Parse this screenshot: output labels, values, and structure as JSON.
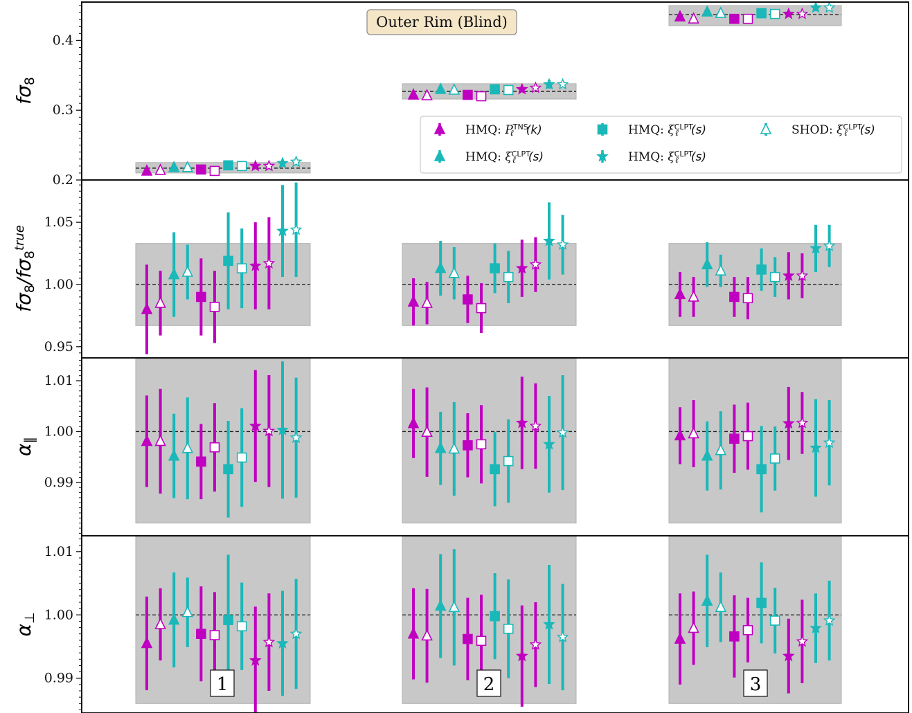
{
  "figure_title": "Outer Rim (Blind)",
  "colors": {
    "magenta": "#c000c0",
    "cyan": "#1ab8b8",
    "band": "#c8c8c8"
  },
  "legend": [
    {
      "marker": "triangle-up",
      "filled": true,
      "color": "#c000c0",
      "label": "HMQ: ",
      "sym": "P",
      "sup": "TNS",
      "sub": "ℓ",
      "arg": "(k)"
    },
    {
      "marker": "square",
      "filled": true,
      "color": "#1ab8b8",
      "label": "HMQ: ",
      "sym": "ξ",
      "sup": "CLPT",
      "sub": "ℓ",
      "arg": "(s)"
    },
    {
      "marker": "triangle-up",
      "filled": false,
      "color": "#1ab8b8",
      "label": "SHOD: ",
      "sym": "ξ",
      "sup": "CLPT",
      "sub": "ℓ",
      "arg": "(s)"
    },
    {
      "marker": "triangle-up",
      "filled": true,
      "color": "#1ab8b8",
      "label": "HMQ: ",
      "sym": "ξ",
      "sup": "CLPT",
      "sub": "ℓ",
      "arg": "(s)"
    },
    {
      "marker": "star",
      "filled": true,
      "color": "#1ab8b8",
      "label": "HMQ: ",
      "sym": "ξ",
      "sup": "CLPT",
      "sub": "ℓ",
      "arg": "(s)"
    }
  ],
  "bin_labels": [
    "1",
    "2",
    "3"
  ],
  "chart_data": [
    {
      "type": "scatter",
      "ylabel": "fσ8",
      "ylim": [
        0.2,
        0.455
      ],
      "yticks": [
        "0.2",
        "0.3",
        "0.4"
      ],
      "reference": [
        0.217,
        0.327,
        0.437
      ],
      "band": [
        [
          0.21,
          0.225
        ],
        [
          0.316,
          0.338
        ],
        [
          0.421,
          0.45
        ]
      ],
      "points": [
        [
          0.213,
          0.214,
          0.218,
          0.218,
          0.215,
          0.213,
          0.221,
          0.22,
          0.22,
          0.22,
          0.224,
          0.226
        ],
        [
          0.322,
          0.321,
          0.33,
          0.329,
          0.322,
          0.32,
          0.33,
          0.329,
          0.33,
          0.332,
          0.337,
          0.337
        ],
        [
          0.434,
          0.431,
          0.441,
          0.439,
          0.431,
          0.431,
          0.439,
          0.438,
          0.438,
          0.438,
          0.447,
          0.447
        ]
      ],
      "errors": [
        [
          0.004,
          0.002,
          0.003,
          0.003,
          0.003,
          0.003,
          0.004,
          0.003,
          0.004,
          0.003,
          0.005,
          0.005
        ],
        [
          0.003,
          0.002,
          0.003,
          0.003,
          0.003,
          0.002,
          0.003,
          0.003,
          0.004,
          0.003,
          0.006,
          0.004
        ],
        [
          0.004,
          0.003,
          0.004,
          0.003,
          0.003,
          0.003,
          0.003,
          0.003,
          0.004,
          0.003,
          0.005,
          0.004
        ]
      ]
    },
    {
      "type": "scatter",
      "ylabel": "fσ8/fσ8^true",
      "ylim": [
        0.941,
        1.084
      ],
      "yticks": [
        "0.95",
        "1.00",
        "1.05"
      ],
      "reference": [
        1.0,
        1.0,
        1.0
      ],
      "band": [
        [
          0.967,
          1.033
        ],
        [
          0.967,
          1.033
        ],
        [
          0.967,
          1.033
        ]
      ],
      "points": [
        [
          0.98,
          0.985,
          1.008,
          1.01,
          0.99,
          0.982,
          1.019,
          1.013,
          1.015,
          1.017,
          1.043,
          1.044
        ],
        [
          0.986,
          0.985,
          1.013,
          1.009,
          0.988,
          0.981,
          1.013,
          1.006,
          1.013,
          1.016,
          1.035,
          1.032
        ],
        [
          0.992,
          0.99,
          1.016,
          1.011,
          0.99,
          0.989,
          1.012,
          1.006,
          1.007,
          1.007,
          1.029,
          1.031
        ]
      ],
      "errors": [
        [
          0.036,
          0.026,
          0.034,
          0.022,
          0.031,
          0.029,
          0.039,
          0.032,
          0.035,
          0.037,
          0.037,
          0.038
        ],
        [
          0.019,
          0.017,
          0.022,
          0.021,
          0.019,
          0.02,
          0.02,
          0.021,
          0.023,
          0.022,
          0.031,
          0.024
        ],
        [
          0.018,
          0.016,
          0.018,
          0.013,
          0.016,
          0.017,
          0.017,
          0.016,
          0.019,
          0.018,
          0.019,
          0.017
        ]
      ]
    },
    {
      "type": "scatter",
      "ylabel": "α∥",
      "ylim": [
        0.9795,
        1.0145
      ],
      "yticks": [
        "0.99",
        "1.00",
        "1.01"
      ],
      "reference": [
        1.0,
        1.0,
        1.0
      ],
      "band": [
        [
          0.982,
          1.0175
        ],
        [
          0.982,
          1.0175
        ],
        [
          0.982,
          1.0175
        ]
      ],
      "points": [
        [
          0.9981,
          0.9981,
          0.9952,
          0.9967,
          0.9941,
          0.9969,
          0.9926,
          0.9949,
          1.0011,
          1.0001,
          1.0003,
          0.9988
        ],
        [
          1.0016,
          0.9999,
          0.9967,
          0.9966,
          0.9973,
          0.9975,
          0.9926,
          0.9942,
          1.0017,
          1.0011,
          0.9975,
          0.9998
        ],
        [
          0.9992,
          0.9996,
          0.9952,
          0.9963,
          0.9986,
          0.9991,
          0.9926,
          0.9947,
          1.0016,
          1.0017,
          0.9968,
          0.9978
        ]
      ],
      "errors": [
        [
          0.009,
          0.0103,
          0.0083,
          0.01,
          0.0074,
          0.0087,
          0.0095,
          0.0097,
          0.011,
          0.011,
          0.0135,
          0.0118
        ],
        [
          0.0068,
          0.0088,
          0.0072,
          0.0092,
          0.0063,
          0.0077,
          0.0073,
          0.0082,
          0.0091,
          0.0084,
          0.0095,
          0.0113
        ],
        [
          0.0056,
          0.0066,
          0.0068,
          0.0077,
          0.0067,
          0.0066,
          0.0085,
          0.0063,
          0.0072,
          0.0061,
          0.0096,
          0.0084
        ]
      ]
    },
    {
      "type": "scatter",
      "ylabel": "α⊥",
      "ylim": [
        0.9845,
        1.0125
      ],
      "yticks": [
        "0.99",
        "1.00",
        "1.01"
      ],
      "reference": [
        1.0,
        1.0,
        1.0
      ],
      "band": [
        [
          0.986,
          1.014
        ],
        [
          0.986,
          1.014
        ],
        [
          0.986,
          1.014
        ]
      ],
      "points": [
        [
          0.9955,
          0.9985,
          0.9992,
          1.0004,
          0.997,
          0.9968,
          0.9992,
          0.9982,
          0.9928,
          0.9957,
          0.9955,
          0.997
        ],
        [
          0.997,
          0.9967,
          1.0014,
          1.0012,
          0.9962,
          0.9959,
          0.9998,
          0.9978,
          0.9935,
          0.9953,
          0.9985,
          0.9965
        ],
        [
          0.9962,
          0.9979,
          1.0022,
          1.0012,
          0.9966,
          0.9976,
          1.0019,
          0.9991,
          0.9935,
          0.9958,
          0.9979,
          0.9991
        ]
      ],
      "errors": [
        [
          0.0074,
          0.0057,
          0.0075,
          0.0055,
          0.0075,
          0.0068,
          0.0103,
          0.0069,
          0.0085,
          0.0077,
          0.0083,
          0.0087
        ],
        [
          0.0072,
          0.0074,
          0.0082,
          0.0092,
          0.0065,
          0.0073,
          0.0068,
          0.0078,
          0.008,
          0.0067,
          0.0094,
          0.0084
        ],
        [
          0.0072,
          0.0058,
          0.0073,
          0.0055,
          0.0065,
          0.0051,
          0.0064,
          0.0052,
          0.0059,
          0.0066,
          0.0055,
          0.0063
        ]
      ]
    }
  ],
  "marker_styles": [
    {
      "shape": "triangle",
      "color": "#c000c0",
      "filled": true
    },
    {
      "shape": "triangle",
      "color": "#c000c0",
      "filled": false
    },
    {
      "shape": "triangle",
      "color": "#1ab8b8",
      "filled": true
    },
    {
      "shape": "triangle",
      "color": "#1ab8b8",
      "filled": false
    },
    {
      "shape": "square",
      "color": "#c000c0",
      "filled": true
    },
    {
      "shape": "square",
      "color": "#c000c0",
      "filled": false
    },
    {
      "shape": "square",
      "color": "#1ab8b8",
      "filled": true
    },
    {
      "shape": "square",
      "color": "#1ab8b8",
      "filled": false
    },
    {
      "shape": "star",
      "color": "#c000c0",
      "filled": true
    },
    {
      "shape": "star",
      "color": "#c000c0",
      "filled": false
    },
    {
      "shape": "star",
      "color": "#1ab8b8",
      "filled": true
    },
    {
      "shape": "star",
      "color": "#1ab8b8",
      "filled": false
    }
  ]
}
